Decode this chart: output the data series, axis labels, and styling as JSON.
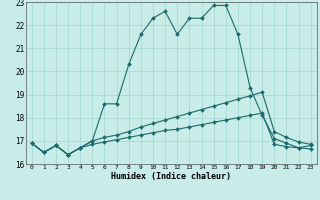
{
  "xlabel": "Humidex (Indice chaleur)",
  "background_color": "#c8ece8",
  "grid_color": "#a8d8d4",
  "line_color": "#1a6b6b",
  "xlim": [
    -0.5,
    23.5
  ],
  "ylim": [
    16,
    23
  ],
  "yticks": [
    16,
    17,
    18,
    19,
    20,
    21,
    22,
    23
  ],
  "xticks": [
    0,
    1,
    2,
    3,
    4,
    5,
    6,
    7,
    8,
    9,
    10,
    11,
    12,
    13,
    14,
    15,
    16,
    17,
    18,
    19,
    20,
    21,
    22,
    23
  ],
  "series1_x": [
    0,
    1,
    2,
    3,
    4,
    5,
    6,
    7,
    8,
    9,
    10,
    11,
    12,
    13,
    14,
    15,
    16,
    17,
    18,
    19,
    20,
    21,
    22,
    23
  ],
  "series1_y": [
    16.9,
    16.5,
    16.8,
    16.4,
    16.7,
    17.0,
    18.6,
    18.6,
    20.3,
    21.6,
    22.3,
    22.6,
    21.6,
    22.3,
    22.3,
    22.85,
    22.85,
    21.6,
    19.3,
    18.1,
    17.1,
    16.9,
    16.7,
    16.8
  ],
  "series2_x": [
    0,
    1,
    2,
    3,
    4,
    5,
    6,
    7,
    8,
    9,
    10,
    11,
    12,
    13,
    14,
    15,
    16,
    17,
    18,
    19,
    20,
    21,
    22,
    23
  ],
  "series2_y": [
    16.9,
    16.5,
    16.8,
    16.4,
    16.7,
    17.0,
    17.15,
    17.25,
    17.4,
    17.6,
    17.75,
    17.9,
    18.05,
    18.2,
    18.35,
    18.5,
    18.65,
    18.8,
    18.95,
    19.1,
    17.4,
    17.15,
    16.95,
    16.85
  ],
  "series3_x": [
    0,
    1,
    2,
    3,
    4,
    5,
    6,
    7,
    8,
    9,
    10,
    11,
    12,
    13,
    14,
    15,
    16,
    17,
    18,
    19,
    20,
    21,
    22,
    23
  ],
  "series3_y": [
    16.9,
    16.5,
    16.8,
    16.4,
    16.7,
    16.85,
    16.95,
    17.05,
    17.15,
    17.25,
    17.35,
    17.45,
    17.5,
    17.6,
    17.7,
    17.8,
    17.9,
    18.0,
    18.1,
    18.2,
    16.85,
    16.75,
    16.7,
    16.65
  ]
}
